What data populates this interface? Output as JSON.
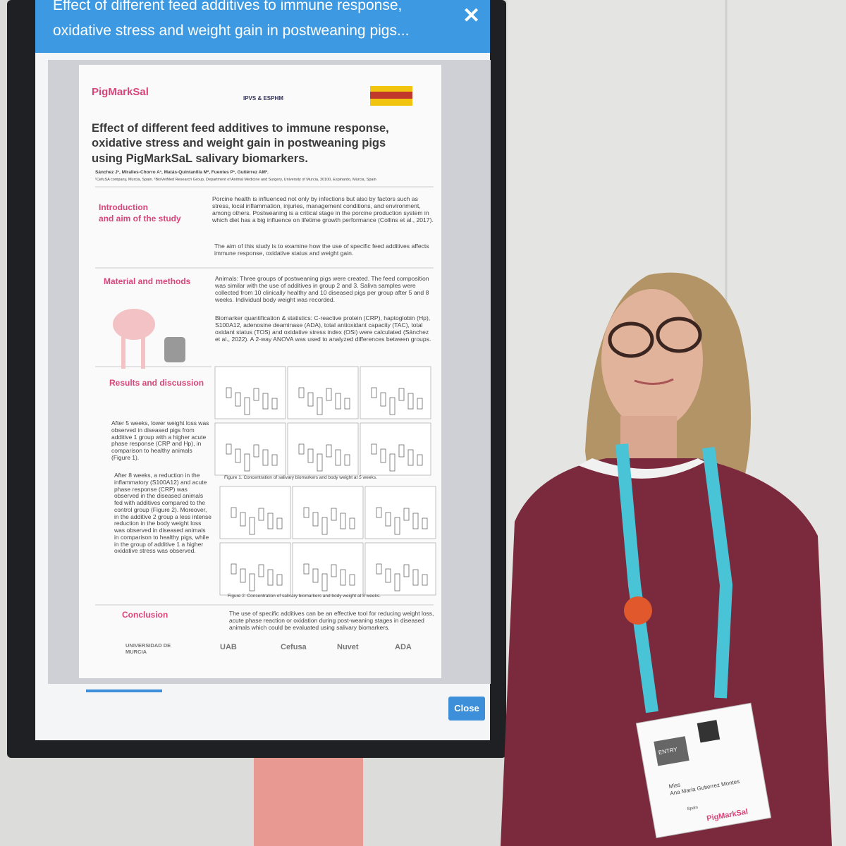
{
  "screen": {
    "header_lines": [
      "Effect of different feed additives to immune response,",
      "oxidative stress and weight gain in postweaning pigs..."
    ],
    "close_button": "Close"
  },
  "poster": {
    "logo": "PigMarkSal",
    "event_logo": "IPVS & ESPHM",
    "title_lines": [
      "Effect of different feed additives to immune response,",
      "oxidative stress and weight gain in postweaning pigs",
      "using PigMarkSaL salivary biomarkers."
    ],
    "authors": "Sánchez J¹, Miralles-Chorro A¹, Matás-Quintanilla M², Fuentes P¹, Gutiérrez AM².",
    "affiliations": "¹CefuSA company, Murcia, Spain. ²BioVetMed Research Group, Department of Animal Medicine and Surgery, University of Murcia, 30100, Espinardo, Murcia, Spain",
    "introduction": {
      "heading_lines": [
        "Introduction",
        "and aim of the study"
      ],
      "paragraphs": [
        "Porcine health is influenced not only by infections but also by factors such as stress, local inflammation, injuries, management conditions, and environment, among others. Postweaning is a critical stage in the porcine production system in which diet has a big influence on lifetime growth performance (Collins et al., 2017).",
        "The aim of this study is to examine how the use of specific feed additives affects immune response, oxidative status and weight gain."
      ]
    },
    "methods": {
      "heading": "Material and methods",
      "paragraphs": [
        "Animals: Three groups of postweaning pigs were created. The feed composition was similar with the use of additives in group 2 and 3. Saliva samples were collected from 10 clinically healthy and 10 diseased pigs per group after 5 and 8 weeks. Individual body weight was recorded.",
        "Biomarker quantification & statistics: C-reactive protein (CRP), haptoglobin (Hp), S100A12, adenosine deaminase (ADA), total antioxidant capacity (TAC), total oxidant status (TOS) and oxidative stress index (OSi) were calculated (Sánchez et al., 2022). A 2-way ANOVA was used to analyzed differences between groups."
      ]
    },
    "results": {
      "heading": "Results and discussion",
      "paragraphs": [
        "After 5 weeks, lower weight loss was observed in diseased pigs from additive 1 group with a higher acute phase response (CRP and Hp), in comparison to healthy animals (Figure 1).",
        "After 8 weeks, a reduction in the inflammatory (S100A12) and acute phase response (CRP) was observed in the diseased animals fed with additives compared to the control group (Figure 2). Moreover, in the additive 2 group a less intense reduction in the body weight loss was observed in diseased animals in comparison to healthy pigs, while in the group of additive 1 a higher oxidative stress was observed."
      ],
      "figure_captions": [
        "Figure 1. Concentration of salivary biomarkers and body weight at 5 weeks.",
        "Figure 2. Concentration of salivary biomarkers and body weight at 8 weeks."
      ]
    },
    "conclusion": {
      "heading": "Conclusion",
      "text": "The use of specific additives can be an effective tool for reducing weight loss, acute phase reaction or oxidation during post-weaning stages in diseased animals which could be evaluated using salivary biomarkers."
    },
    "partner_logos": [
      "UNIVERSIDAD DE MURCIA",
      "UAB",
      "Cefusa",
      "Nuvet",
      "ADA"
    ]
  },
  "badge": {
    "entry": "ENTRY",
    "salutation": "Miss",
    "name": "Ana Maria Gutierrez Montes",
    "country": "Spain",
    "logo": "PigMarkSal"
  }
}
